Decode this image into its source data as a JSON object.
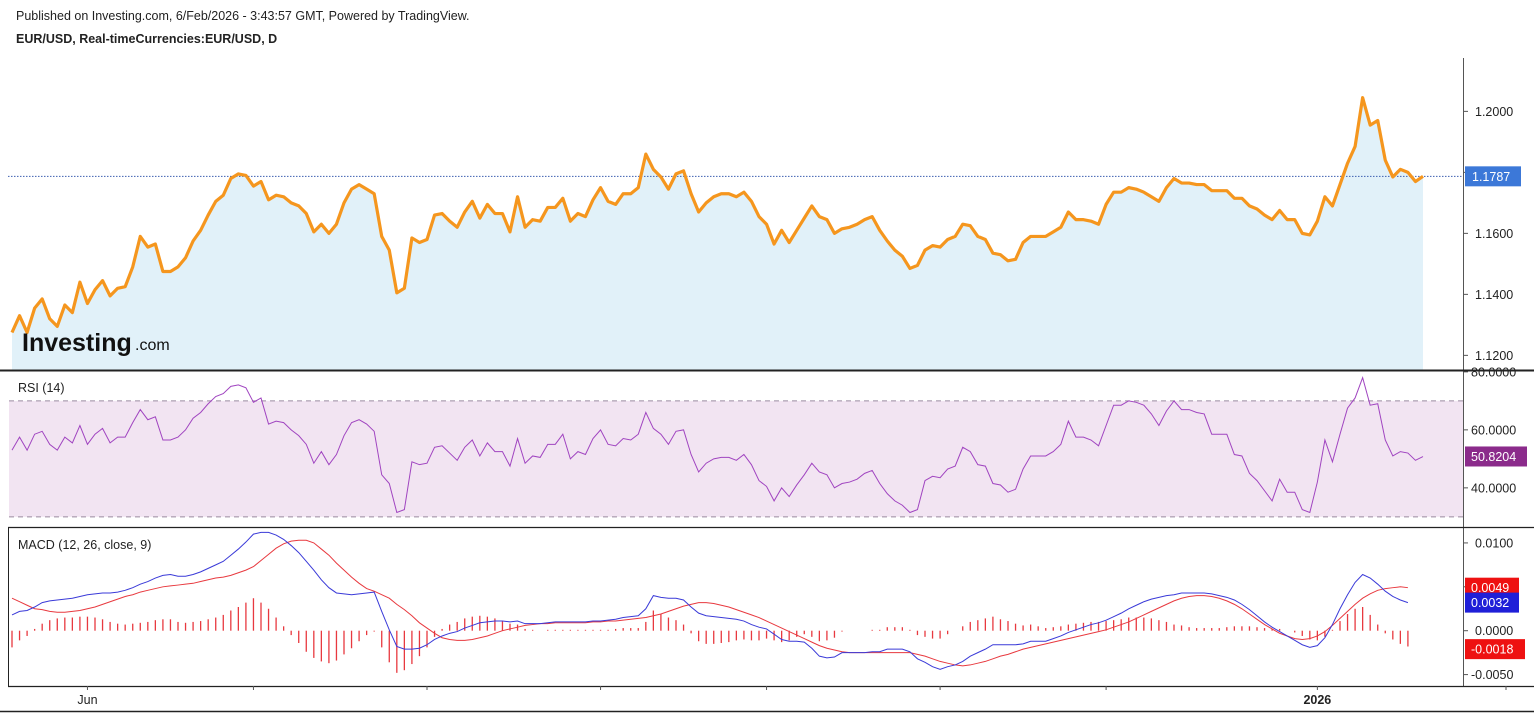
{
  "header": {
    "published_line": "Published on Investing.com, 6/Feb/2026 - 3:43:57 GMT, Powered by TradingView.",
    "symbol_line": "EUR/USD, Real-timeCurrencies:EUR/USD, D"
  },
  "logo": {
    "name": "Investing",
    "suffix": ".com"
  },
  "colors": {
    "price_line": "#f5961e",
    "price_fill": "#e1f1f9",
    "last_price_tag": "#3c78d8",
    "rsi_line": "#a044c0",
    "rsi_band": "#f2e4f2",
    "rsi_tag": "#8b2b8b",
    "macd_line": "#3a3ad8",
    "signal_line": "#e8393f",
    "histogram": "#e8393f",
    "macd_tag": "#1f1fd8",
    "signal_tag": "#ee1111",
    "hist_tag": "#ee1111"
  },
  "chart_data": [
    {
      "type": "area",
      "name": "price",
      "y_ticks": [
        "1.2000",
        "1.1800",
        "1.1600",
        "1.1400",
        "1.1200"
      ],
      "ylim": [
        1.1152,
        1.2175
      ],
      "last_value_label": "1.1787",
      "last_value": 1.1787,
      "grid": false,
      "values": [
        1.1275,
        1.133,
        1.1275,
        1.1355,
        1.1385,
        1.132,
        1.1295,
        1.1365,
        1.134,
        1.144,
        1.137,
        1.1415,
        1.1445,
        1.1395,
        1.142,
        1.1425,
        1.149,
        1.159,
        1.1555,
        1.1565,
        1.1475,
        1.1475,
        1.149,
        1.152,
        1.1575,
        1.161,
        1.166,
        1.1705,
        1.1725,
        1.178,
        1.1795,
        1.179,
        1.1755,
        1.177,
        1.171,
        1.1725,
        1.172,
        1.17,
        1.169,
        1.1665,
        1.1605,
        1.163,
        1.16,
        1.163,
        1.17,
        1.1745,
        1.176,
        1.1745,
        1.173,
        1.159,
        1.1545,
        1.1405,
        1.142,
        1.1585,
        1.157,
        1.158,
        1.166,
        1.1665,
        1.164,
        1.162,
        1.167,
        1.1705,
        1.165,
        1.1695,
        1.1665,
        1.1665,
        1.1605,
        1.172,
        1.162,
        1.1645,
        1.164,
        1.1685,
        1.1685,
        1.1715,
        1.164,
        1.1665,
        1.1655,
        1.171,
        1.175,
        1.1705,
        1.1695,
        1.173,
        1.173,
        1.175,
        1.186,
        1.181,
        1.1785,
        1.1745,
        1.1795,
        1.1805,
        1.173,
        1.167,
        1.17,
        1.172,
        1.173,
        1.173,
        1.172,
        1.1735,
        1.1705,
        1.1655,
        1.163,
        1.1565,
        1.161,
        1.157,
        1.161,
        1.165,
        1.169,
        1.1655,
        1.1645,
        1.16,
        1.1615,
        1.162,
        1.163,
        1.1645,
        1.1655,
        1.161,
        1.1575,
        1.1545,
        1.1525,
        1.1485,
        1.1495,
        1.1545,
        1.156,
        1.1555,
        1.158,
        1.159,
        1.163,
        1.1625,
        1.159,
        1.158,
        1.1535,
        1.153,
        1.151,
        1.1515,
        1.157,
        1.159,
        1.159,
        1.159,
        1.1605,
        1.162,
        1.167,
        1.1645,
        1.1645,
        1.164,
        1.163,
        1.1695,
        1.1735,
        1.1735,
        1.175,
        1.1745,
        1.1735,
        1.172,
        1.1705,
        1.175,
        1.178,
        1.1765,
        1.1765,
        1.176,
        1.176,
        1.174,
        1.174,
        1.174,
        1.1715,
        1.1715,
        1.169,
        1.168,
        1.166,
        1.1645,
        1.1675,
        1.1645,
        1.1645,
        1.16,
        1.1595,
        1.164,
        1.172,
        1.169,
        1.176,
        1.183,
        1.1885,
        1.2045,
        1.1955,
        1.197,
        1.184,
        1.1785,
        1.181,
        1.18,
        1.177,
        1.1787
      ]
    },
    {
      "type": "line",
      "name": "RSI (14)",
      "y_ticks": [
        "80.0000",
        "60.0000",
        "40.0000"
      ],
      "ylim": [
        26.5,
        80.3
      ],
      "band": [
        30,
        70
      ],
      "last_value_label": "50.8204",
      "last_value": 50.82,
      "values": [
        53.0,
        57.5,
        53.0,
        58.5,
        59.5,
        55.0,
        53.0,
        57.5,
        55.5,
        61.5,
        55.0,
        58.5,
        60.5,
        55.5,
        57.5,
        57.5,
        62.5,
        67.0,
        63.5,
        64.5,
        56.5,
        56.5,
        57.5,
        60.0,
        64.0,
        66.0,
        69.0,
        71.5,
        72.5,
        75.0,
        75.5,
        74.5,
        69.5,
        71.0,
        62.0,
        63.0,
        62.5,
        60.0,
        58.0,
        55.0,
        48.5,
        52.5,
        48.0,
        51.5,
        58.0,
        62.5,
        63.5,
        62.0,
        59.5,
        44.5,
        41.5,
        31.5,
        32.5,
        49.0,
        48.0,
        48.5,
        54.0,
        54.5,
        52.0,
        49.5,
        54.0,
        56.5,
        51.0,
        55.5,
        52.5,
        52.5,
        47.5,
        57.0,
        48.5,
        51.0,
        50.5,
        55.0,
        55.0,
        58.5,
        50.0,
        52.5,
        51.5,
        57.0,
        60.0,
        55.0,
        54.5,
        57.0,
        56.5,
        58.5,
        66.0,
        60.5,
        58.5,
        55.0,
        59.5,
        60.0,
        51.5,
        45.5,
        48.5,
        50.0,
        50.5,
        50.5,
        49.5,
        51.5,
        48.0,
        42.5,
        40.5,
        35.5,
        40.0,
        37.0,
        41.0,
        44.5,
        48.5,
        45.5,
        44.5,
        40.0,
        41.5,
        42.0,
        43.0,
        45.0,
        46.0,
        41.5,
        38.0,
        35.5,
        34.0,
        31.5,
        32.5,
        42.5,
        44.0,
        43.5,
        46.5,
        47.5,
        54.0,
        52.5,
        48.0,
        47.5,
        41.5,
        41.0,
        38.5,
        39.5,
        46.5,
        51.0,
        51.0,
        51.0,
        52.5,
        55.0,
        63.0,
        57.5,
        57.5,
        56.5,
        54.5,
        61.5,
        68.5,
        68.5,
        70.0,
        69.5,
        68.5,
        65.5,
        61.5,
        66.5,
        70.0,
        67.0,
        67.0,
        66.0,
        65.5,
        58.5,
        58.5,
        58.5,
        51.5,
        51.0,
        45.0,
        42.5,
        39.0,
        35.5,
        43.0,
        38.5,
        38.5,
        32.5,
        31.5,
        42.0,
        56.5,
        49.0,
        58.5,
        67.5,
        71.0,
        78.0,
        68.5,
        69.0,
        56.5,
        51.0,
        52.5,
        52.0,
        49.5,
        50.8
      ]
    },
    {
      "type": "line",
      "name": "MACD (12, 26, close, 9)",
      "y_ticks": [
        "0.0100",
        "0.0050",
        "0.0000",
        "-0.0050"
      ],
      "ylim": [
        -0.0063,
        0.0117
      ],
      "last_macd_label": "0.0032",
      "last_signal_label": "0.0049",
      "last_hist_label": "-0.0018",
      "macd": [
        0.0018,
        0.0022,
        0.0023,
        0.0027,
        0.0032,
        0.0034,
        0.0035,
        0.0036,
        0.0037,
        0.0039,
        0.0041,
        0.0042,
        0.0043,
        0.0043,
        0.0044,
        0.0046,
        0.0049,
        0.0053,
        0.0056,
        0.006,
        0.0063,
        0.0064,
        0.0062,
        0.0062,
        0.0064,
        0.0067,
        0.0071,
        0.0075,
        0.0079,
        0.0086,
        0.0093,
        0.0101,
        0.011,
        0.0112,
        0.0112,
        0.0109,
        0.0104,
        0.0097,
        0.0089,
        0.0079,
        0.0069,
        0.0058,
        0.0049,
        0.0043,
        0.0042,
        0.0041,
        0.0042,
        0.0043,
        0.0044,
        0.0022,
        0.0001,
        -0.0018,
        -0.0021,
        -0.0021,
        -0.002,
        -0.0016,
        -0.001,
        -0.0006,
        -0.0003,
        -0.0001,
        0.0003,
        0.0006,
        0.0009,
        0.001,
        0.0011,
        0.0011,
        0.001,
        0.0011,
        0.0008,
        0.0008,
        0.0008,
        0.0009,
        0.001,
        0.001,
        0.001,
        0.001,
        0.001,
        0.0011,
        0.0011,
        0.0012,
        0.0013,
        0.0015,
        0.0016,
        0.0017,
        0.0025,
        0.004,
        0.0038,
        0.0037,
        0.0037,
        0.0035,
        0.0027,
        0.002,
        0.0017,
        0.0016,
        0.0015,
        0.0014,
        0.0013,
        0.0011,
        0.0007,
        0.0004,
        0.0002,
        -0.0004,
        -0.001,
        -0.0012,
        -0.0012,
        -0.0013,
        -0.002,
        -0.0029,
        -0.0031,
        -0.003,
        -0.0025,
        -0.0025,
        -0.0025,
        -0.0025,
        -0.0024,
        -0.0024,
        -0.0021,
        -0.0021,
        -0.0021,
        -0.0024,
        -0.0032,
        -0.0036,
        -0.0041,
        -0.0044,
        -0.0041,
        -0.0039,
        -0.0035,
        -0.0029,
        -0.0025,
        -0.0021,
        -0.0016,
        -0.0016,
        -0.0016,
        -0.0016,
        -0.0015,
        -0.0012,
        -0.0012,
        -0.0012,
        -0.0009,
        -0.0006,
        -0.0002,
        0.0001,
        0.0004,
        0.0007,
        0.0009,
        0.0012,
        0.0016,
        0.002,
        0.0025,
        0.0029,
        0.0033,
        0.0036,
        0.0038,
        0.004,
        0.0041,
        0.0043,
        0.0043,
        0.0043,
        0.0043,
        0.0042,
        0.004,
        0.0038,
        0.0035,
        0.003,
        0.0024,
        0.0017,
        0.001,
        0.0004,
        -0.0001,
        -0.0006,
        -0.0011,
        -0.0016,
        -0.0019,
        -0.0017,
        -0.0008,
        0.0007,
        0.0025,
        0.0041,
        0.0055,
        0.0064,
        0.006,
        0.0053,
        0.0045,
        0.0039,
        0.0035,
        0.0032
      ],
      "signal": [
        0.0037,
        0.0033,
        0.0029,
        0.0025,
        0.0024,
        0.0022,
        0.0021,
        0.0021,
        0.0022,
        0.0023,
        0.0025,
        0.0027,
        0.003,
        0.0033,
        0.0036,
        0.0039,
        0.0041,
        0.0044,
        0.0046,
        0.0048,
        0.005,
        0.0051,
        0.0052,
        0.0053,
        0.0054,
        0.0056,
        0.0058,
        0.006,
        0.0061,
        0.0063,
        0.0066,
        0.0069,
        0.0073,
        0.008,
        0.0087,
        0.0094,
        0.0099,
        0.0102,
        0.0103,
        0.0103,
        0.01,
        0.0093,
        0.0086,
        0.0077,
        0.0069,
        0.0061,
        0.0054,
        0.0048,
        0.0045,
        0.0041,
        0.0037,
        0.003,
        0.0024,
        0.0017,
        0.0009,
        0.0003,
        -0.0003,
        -0.0008,
        -0.001,
        -0.0011,
        -0.0011,
        -0.001,
        -0.0008,
        -0.0006,
        -0.0003,
        0.0,
        0.0002,
        0.0004,
        0.0006,
        0.0007,
        0.0008,
        0.0008,
        0.0009,
        0.0009,
        0.0009,
        0.0009,
        0.0009,
        0.001,
        0.001,
        0.0011,
        0.0011,
        0.0012,
        0.0013,
        0.0014,
        0.0015,
        0.0017,
        0.0019,
        0.0022,
        0.0025,
        0.0028,
        0.003,
        0.0032,
        0.0032,
        0.0031,
        0.0029,
        0.0027,
        0.0024,
        0.0021,
        0.0018,
        0.0015,
        0.0011,
        0.0007,
        0.0003,
        -0.0001,
        -0.0005,
        -0.0009,
        -0.0013,
        -0.0017,
        -0.002,
        -0.0022,
        -0.0024,
        -0.0025,
        -0.0025,
        -0.0025,
        -0.0025,
        -0.0025,
        -0.0025,
        -0.0025,
        -0.0025,
        -0.0025,
        -0.0027,
        -0.0029,
        -0.0032,
        -0.0035,
        -0.0037,
        -0.0039,
        -0.004,
        -0.0039,
        -0.0037,
        -0.0035,
        -0.0032,
        -0.0029,
        -0.0027,
        -0.0024,
        -0.0021,
        -0.0019,
        -0.0017,
        -0.0015,
        -0.0013,
        -0.0011,
        -0.0009,
        -0.0007,
        -0.0005,
        -0.0003,
        -0.0001,
        0.0001,
        0.0004,
        0.0007,
        0.001,
        0.0014,
        0.0018,
        0.0022,
        0.0026,
        0.003,
        0.0034,
        0.0037,
        0.0039,
        0.004,
        0.004,
        0.0039,
        0.0037,
        0.0034,
        0.003,
        0.0025,
        0.0019,
        0.0013,
        0.0007,
        0.0002,
        -0.0003,
        -0.0006,
        -0.0009,
        -0.001,
        -0.0009,
        -0.0006,
        -0.0001,
        0.0006,
        0.0014,
        0.0022,
        0.003,
        0.0037,
        0.0042,
        0.0046,
        0.0048,
        0.0049,
        0.005,
        0.0049
      ],
      "histogram": [
        -0.0019,
        -0.0011,
        -0.0006,
        0.0002,
        0.0008,
        0.0012,
        0.0014,
        0.0015,
        0.0015,
        0.0016,
        0.0016,
        0.0015,
        0.0013,
        0.001,
        0.0008,
        0.0007,
        0.0008,
        0.0009,
        0.001,
        0.0012,
        0.0013,
        0.0013,
        0.001,
        0.0009,
        0.001,
        0.0011,
        0.0013,
        0.0015,
        0.0018,
        0.0023,
        0.0027,
        0.0032,
        0.0037,
        0.0032,
        0.0025,
        0.0015,
        0.0005,
        -0.0005,
        -0.0014,
        -0.0024,
        -0.0031,
        -0.0035,
        -0.0037,
        -0.0034,
        -0.0027,
        -0.002,
        -0.0012,
        -0.0005,
        -0.0001,
        -0.0019,
        -0.0036,
        -0.0048,
        -0.0045,
        -0.0038,
        -0.0029,
        -0.0019,
        -0.0007,
        0.0002,
        0.0007,
        0.001,
        0.0014,
        0.0016,
        0.0017,
        0.0016,
        0.0014,
        0.0011,
        0.0008,
        0.0007,
        0.0002,
        0.0001,
        0.0,
        0.0001,
        0.0001,
        0.0001,
        0.0001,
        0.0001,
        0.0001,
        0.0001,
        0.0001,
        0.0001,
        0.0002,
        0.0003,
        0.0003,
        0.0003,
        0.001,
        0.0023,
        0.0019,
        0.0015,
        0.0012,
        0.0007,
        -0.0003,
        -0.0012,
        -0.0015,
        -0.0015,
        -0.0014,
        -0.0013,
        -0.0011,
        -0.001,
        -0.0011,
        -0.0011,
        -0.0009,
        -0.0011,
        -0.0013,
        -0.0011,
        -0.0007,
        -0.0004,
        -0.0007,
        -0.0012,
        -0.0011,
        -0.0008,
        -0.0001,
        0.0,
        0.0,
        0.0,
        0.0001,
        0.0001,
        0.0004,
        0.0004,
        0.0004,
        0.0001,
        -0.0005,
        -0.0007,
        -0.0009,
        -0.0009,
        -0.0004,
        0.0,
        0.0005,
        0.001,
        0.0012,
        0.0014,
        0.0016,
        0.0013,
        0.0011,
        0.0008,
        0.0006,
        0.0007,
        0.0005,
        0.0003,
        0.0004,
        0.0005,
        0.0007,
        0.0008,
        0.0009,
        0.001,
        0.001,
        0.0011,
        0.0012,
        0.0013,
        0.0015,
        0.0015,
        0.0015,
        0.0014,
        0.0012,
        0.001,
        0.0007,
        0.0006,
        0.0004,
        0.0003,
        0.0003,
        0.0003,
        0.0003,
        0.0004,
        0.0005,
        0.0005,
        0.0005,
        0.0004,
        0.0003,
        0.0002,
        0.0002,
        0.0,
        -0.0002,
        -0.0006,
        -0.001,
        -0.0011,
        -0.0007,
        0.0001,
        0.0011,
        0.0019,
        0.0025,
        0.0027,
        0.0018,
        0.0007,
        -0.0003,
        -0.001,
        -0.0015,
        -0.0018
      ]
    }
  ],
  "x_axis": {
    "labels": [
      {
        "text": "Jun",
        "index": 10
      },
      {
        "text": "2026",
        "index": 173
      }
    ],
    "tick_indices": [
      10,
      32,
      55,
      78,
      100,
      123,
      145,
      173,
      198
    ]
  }
}
